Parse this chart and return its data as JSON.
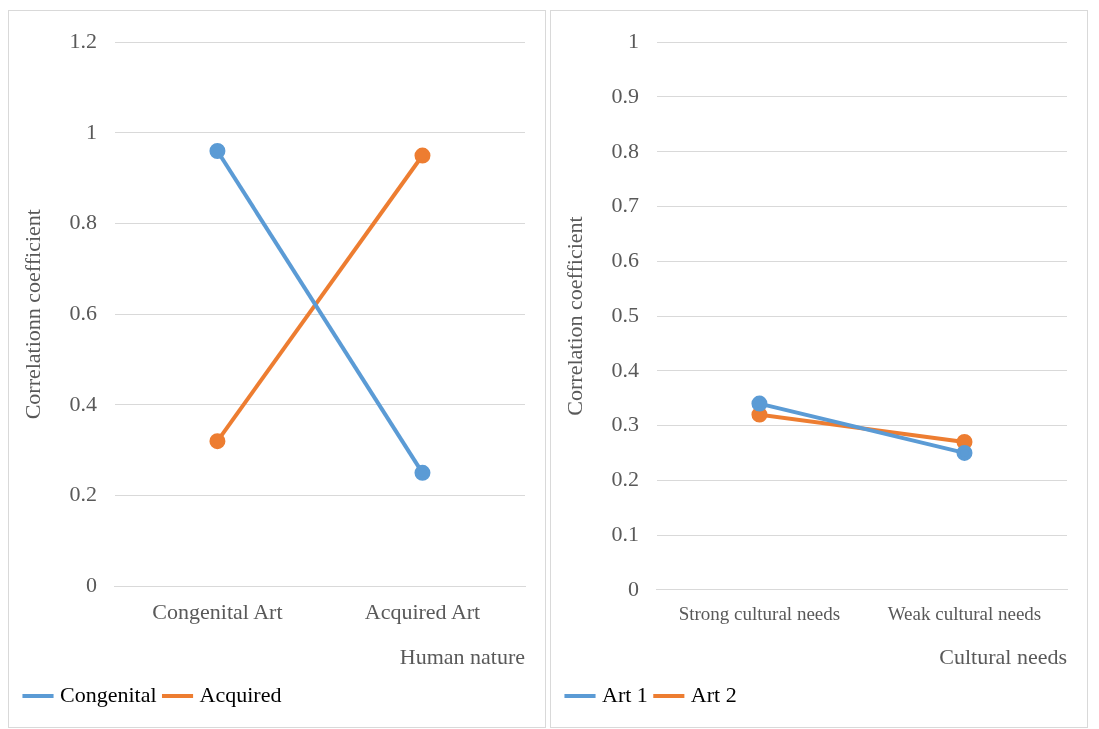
{
  "chart_data": [
    {
      "type": "line",
      "categories": [
        "Congenital Art",
        "Acquired Art"
      ],
      "xlabel": "Human nature",
      "ylabel": "Correlationn coefficient",
      "ylim": [
        0,
        1.2
      ],
      "yticks": [
        0,
        0.2,
        0.4,
        0.6,
        0.8,
        1,
        1.2
      ],
      "grid": "y",
      "legend": "bottom left",
      "marker": "circle",
      "series": [
        {
          "name": "Congenital",
          "color": "#5b9bd5",
          "values": [
            0.96,
            0.25
          ]
        },
        {
          "name": "Acquired",
          "color": "#ed7d31",
          "values": [
            0.32,
            0.95
          ]
        }
      ]
    },
    {
      "type": "line",
      "categories": [
        "Strong cultural needs",
        "Weak cultural needs"
      ],
      "xlabel": "Cultural needs",
      "ylabel": "Correlation coefficient",
      "ylim": [
        0,
        1
      ],
      "yticks": [
        0,
        0.1,
        0.2,
        0.3,
        0.4,
        0.5,
        0.6,
        0.7,
        0.8,
        0.9,
        1
      ],
      "grid": "y",
      "legend": "bottom left",
      "marker": "circle",
      "series": [
        {
          "name": "Art 1",
          "color": "#5b9bd5",
          "values": [
            0.34,
            0.25
          ]
        },
        {
          "name": "Art 2",
          "color": "#ed7d31",
          "values": [
            0.32,
            0.27
          ]
        }
      ]
    }
  ]
}
